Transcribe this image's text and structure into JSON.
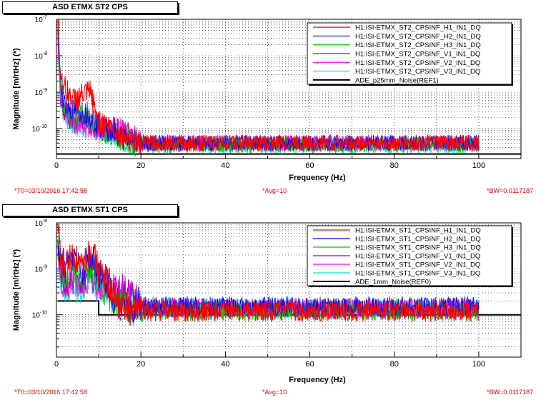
{
  "chart_data": [
    {
      "type": "line",
      "title": "ASD ETMX ST2 CPS",
      "xlabel": "Frequency (Hz)",
      "ylabel": "Magnitude [m/rtHz] (*)",
      "xlim": [
        0,
        110
      ],
      "ylim": [
        1.5e-11,
        1e-07
      ],
      "yscale": "log",
      "x_ticks": [
        0,
        20,
        40,
        60,
        80,
        100
      ],
      "y_ticks": [
        {
          "label_base": "10",
          "label_exp": "-7",
          "value": 1e-07
        },
        {
          "label_base": "10",
          "label_exp": "-8",
          "value": 1e-08
        },
        {
          "label_base": "10",
          "label_exp": "-9",
          "value": 1e-09
        },
        {
          "label_base": "10",
          "label_exp": "-10",
          "value": 1e-10
        }
      ],
      "grid": true,
      "legend_position": "top-right",
      "series": [
        {
          "name": "H1:ISI-ETMX_ST2_CPSINF_H1_IN1_DQ",
          "color": "#ff0000",
          "x": [
            0.3,
            1,
            2,
            4,
            6,
            8,
            10,
            12,
            14,
            16,
            18,
            20,
            40,
            60,
            80,
            100
          ],
          "y": [
            9e-08,
            3e-09,
            1.3e-09,
            6e-10,
            8e-10,
            1e-09,
            1.5e-10,
            1.2e-10,
            9e-11,
            6e-11,
            5e-11,
            4e-11,
            4e-11,
            4e-11,
            4e-11,
            4e-11
          ]
        },
        {
          "name": "H1:ISI-ETMX_ST2_CPSINF_H2_IN1_DQ",
          "color": "#0000ff",
          "x": [
            0.3,
            1,
            2,
            4,
            6,
            8,
            10,
            12,
            14,
            16,
            18,
            20,
            40,
            60,
            80,
            100
          ],
          "y": [
            6e-08,
            1.5e-09,
            5e-10,
            3e-10,
            3e-10,
            2.5e-10,
            1.2e-10,
            1e-10,
            7e-11,
            5e-11,
            4.5e-11,
            4e-11,
            4e-11,
            4e-11,
            4e-11,
            4e-11
          ]
        },
        {
          "name": "H1:ISI-ETMX_ST2_CPSINF_H3_IN1_DQ",
          "color": "#00cc00",
          "x": [
            0.3,
            1,
            2,
            4,
            6,
            8,
            10,
            12,
            14,
            16,
            18,
            20,
            40,
            60,
            80,
            100
          ],
          "y": [
            5e-08,
            1e-09,
            4e-10,
            2e-10,
            2e-10,
            2e-10,
            1e-10,
            8e-11,
            6e-11,
            5e-11,
            4e-11,
            3.5e-11,
            3.5e-11,
            3.5e-11,
            3.5e-11,
            3.5e-11
          ]
        },
        {
          "name": "H1:ISI-ETMX_ST2_CPSINF_V1_IN1_DQ",
          "color": "#aa00aa",
          "x": [
            0.3,
            1,
            2,
            4,
            6,
            8,
            10,
            12,
            14,
            16,
            18,
            20,
            40,
            60,
            80,
            100
          ],
          "y": [
            4e-08,
            8e-10,
            3e-10,
            1.5e-10,
            1.5e-10,
            1.5e-10,
            1e-10,
            9e-11,
            1e-10,
            8e-11,
            6e-11,
            4e-11,
            4e-11,
            4e-11,
            4e-11,
            4e-11
          ]
        },
        {
          "name": "H1:ISI-ETMX_ST2_CPSINF_V2_IN1_DQ",
          "color": "#ff00ff",
          "x": [
            0.3,
            1,
            2,
            4,
            6,
            8,
            10,
            12,
            14,
            16,
            18,
            20,
            40,
            60,
            80,
            100
          ],
          "y": [
            3e-08,
            7e-10,
            3e-10,
            1.5e-10,
            1.2e-10,
            1.2e-10,
            1e-10,
            9e-11,
            1e-10,
            9e-11,
            6e-11,
            4e-11,
            4e-11,
            4e-11,
            4e-11,
            4e-11
          ]
        },
        {
          "name": "H1:ISI-ETMX_ST2_CPSINF_V3_IN1_DQ",
          "color": "#00dddd",
          "x": [
            0.3,
            1,
            2,
            4,
            6,
            8,
            10,
            12,
            14,
            16,
            18,
            20,
            40,
            60,
            80,
            100
          ],
          "y": [
            3e-08,
            6e-10,
            2.5e-10,
            1.2e-10,
            1.2e-10,
            1.2e-10,
            9e-11,
            8e-11,
            7e-11,
            5e-11,
            4e-11,
            3.5e-11,
            3.5e-11,
            3.5e-11,
            3.5e-11,
            3.5e-11
          ]
        },
        {
          "name": "ADE_p25mm_Noise(REF1)",
          "color": "#000000",
          "x": [
            0,
            110
          ],
          "y": [
            2e-11,
            2e-11
          ]
        }
      ],
      "footer": {
        "left": "*T0=03/10/2016 17:42:58",
        "center": "*Avg=10",
        "right": "*BW=0.0117187"
      }
    },
    {
      "type": "line",
      "title": "ASD ETMX ST1 CPS",
      "xlabel": "Frequency (Hz)",
      "ylabel": "Magnitude [m/rtHz] (*)",
      "xlim": [
        0,
        110
      ],
      "ylim": [
        1.2e-11,
        1e-08
      ],
      "yscale": "log",
      "x_ticks": [
        0,
        20,
        40,
        60,
        80,
        100
      ],
      "y_ticks": [
        {
          "label_base": "10",
          "label_exp": "-8",
          "value": 1e-08
        },
        {
          "label_base": "10",
          "label_exp": "-9",
          "value": 1e-09
        },
        {
          "label_base": "10",
          "label_exp": "-10",
          "value": 1e-10
        }
      ],
      "grid": true,
      "legend_position": "top-right",
      "series": [
        {
          "name": "H1:ISI-ETMX_ST1_CPSINF_H1_IN1_DQ",
          "color": "#ff0000",
          "x": [
            0.3,
            1,
            2,
            4,
            6,
            8,
            10,
            12,
            14,
            16,
            18,
            20,
            40,
            60,
            80,
            100
          ],
          "y": [
            8e-09,
            2e-09,
            1.2e-09,
            2e-09,
            1e-09,
            3e-09,
            1e-09,
            5e-10,
            2e-10,
            1.4e-10,
            1.2e-10,
            1.2e-10,
            1.2e-10,
            1.2e-10,
            1.2e-10,
            1.2e-10
          ]
        },
        {
          "name": "H1:ISI-ETMX_ST1_CPSINF_H2_IN1_DQ",
          "color": "#0000ff",
          "x": [
            0.3,
            1,
            2,
            4,
            6,
            8,
            10,
            12,
            14,
            16,
            18,
            20,
            40,
            60,
            80,
            100
          ],
          "y": [
            5e-09,
            1.5e-09,
            1e-09,
            1.5e-09,
            8e-10,
            2e-09,
            8e-10,
            4e-10,
            1.8e-10,
            1.5e-10,
            1.4e-10,
            1.5e-10,
            1.5e-10,
            1.5e-10,
            1.5e-10,
            1.5e-10
          ]
        },
        {
          "name": "H1:ISI-ETMX_ST1_CPSINF_H3_IN1_DQ",
          "color": "#00cc00",
          "x": [
            0.3,
            1,
            2,
            4,
            6,
            8,
            10,
            12,
            14,
            16,
            18,
            20,
            40,
            60,
            80,
            100
          ],
          "y": [
            4e-09,
            1e-09,
            8e-10,
            9e-10,
            6e-10,
            1e-09,
            5e-10,
            3e-10,
            2e-10,
            1.5e-10,
            1.2e-10,
            1.2e-10,
            1.2e-10,
            1.2e-10,
            1.2e-10,
            1.2e-10
          ]
        },
        {
          "name": "H1:ISI-ETMX_ST1_CPSINF_V1_IN1_DQ",
          "color": "#aa00aa",
          "x": [
            0.3,
            1,
            2,
            4,
            6,
            8,
            10,
            12,
            14,
            16,
            18,
            20,
            40,
            60,
            80,
            100
          ],
          "y": [
            3e-09,
            8e-10,
            5e-10,
            6e-10,
            5e-10,
            7e-10,
            5e-10,
            5e-10,
            4e-10,
            3.5e-10,
            3e-10,
            1.5e-10,
            1.4e-10,
            1.4e-10,
            1.4e-10,
            1.4e-10
          ]
        },
        {
          "name": "H1:ISI-ETMX_ST1_CPSINF_V2_IN1_DQ",
          "color": "#ff00ff",
          "x": [
            0.3,
            1,
            2,
            4,
            6,
            8,
            10,
            12,
            14,
            16,
            18,
            20,
            40,
            60,
            80,
            100
          ],
          "y": [
            3e-09,
            7e-10,
            4e-10,
            5e-10,
            4e-10,
            6e-10,
            4e-10,
            4e-10,
            3.5e-10,
            3e-10,
            2.5e-10,
            1.5e-10,
            1.3e-10,
            1.3e-10,
            1.3e-10,
            1.3e-10
          ]
        },
        {
          "name": "H1:ISI-ETMX_ST1_CPSINF_V3_IN1_DQ",
          "color": "#00dddd",
          "x": [
            0.3,
            1,
            2,
            4,
            6,
            8,
            10,
            12,
            14,
            16,
            18,
            20,
            40,
            60,
            80,
            100
          ],
          "y": [
            2.5e-09,
            6e-10,
            4e-10,
            4e-10,
            4e-10,
            5e-10,
            4e-10,
            4e-10,
            3e-10,
            2.5e-10,
            2e-10,
            1.5e-10,
            1.4e-10,
            1.4e-10,
            1.4e-10,
            1.4e-10
          ]
        },
        {
          "name": "ADE_1mm_Noise(REF0)",
          "color": "#000000",
          "x": [
            0.3,
            10,
            10,
            110
          ],
          "y": [
            2e-10,
            2e-10,
            1e-10,
            1e-10
          ]
        }
      ],
      "footer": {
        "left": "*T0=03/10/2016 17:42:58",
        "center": "*Avg=10",
        "right": "*BW=0.0117187"
      }
    }
  ]
}
